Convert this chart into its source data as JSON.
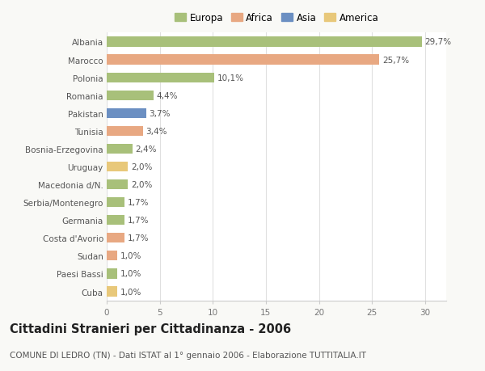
{
  "countries": [
    "Albania",
    "Marocco",
    "Polonia",
    "Romania",
    "Pakistan",
    "Tunisia",
    "Bosnia-Erzegovina",
    "Uruguay",
    "Macedonia d/N.",
    "Serbia/Montenegro",
    "Germania",
    "Costa d'Avorio",
    "Sudan",
    "Paesi Bassi",
    "Cuba"
  ],
  "values": [
    29.7,
    25.7,
    10.1,
    4.4,
    3.7,
    3.4,
    2.4,
    2.0,
    2.0,
    1.7,
    1.7,
    1.7,
    1.0,
    1.0,
    1.0
  ],
  "labels": [
    "29,7%",
    "25,7%",
    "10,1%",
    "4,4%",
    "3,7%",
    "3,4%",
    "2,4%",
    "2,0%",
    "2,0%",
    "1,7%",
    "1,7%",
    "1,7%",
    "1,0%",
    "1,0%",
    "1,0%"
  ],
  "continents": [
    "Europa",
    "Africa",
    "Europa",
    "Europa",
    "Asia",
    "Africa",
    "Europa",
    "America",
    "Europa",
    "Europa",
    "Europa",
    "Africa",
    "Africa",
    "Europa",
    "America"
  ],
  "continent_colors": {
    "Europa": "#a8c07a",
    "Africa": "#e8a882",
    "Asia": "#6b8fc2",
    "America": "#e8c87a"
  },
  "legend_order": [
    "Europa",
    "Africa",
    "Asia",
    "America"
  ],
  "title": "Cittadini Stranieri per Cittadinanza - 2006",
  "subtitle": "COMUNE DI LEDRO (TN) - Dati ISTAT al 1° gennaio 2006 - Elaborazione TUTTITALIA.IT",
  "xlim": [
    0,
    32
  ],
  "xticks": [
    0,
    5,
    10,
    15,
    20,
    25,
    30
  ],
  "background_color": "#f9f9f6",
  "plot_background": "#ffffff",
  "grid_color": "#e0e0e0",
  "bar_height": 0.55,
  "title_fontsize": 10.5,
  "subtitle_fontsize": 7.5,
  "label_fontsize": 7.5,
  "tick_fontsize": 7.5,
  "legend_fontsize": 8.5
}
